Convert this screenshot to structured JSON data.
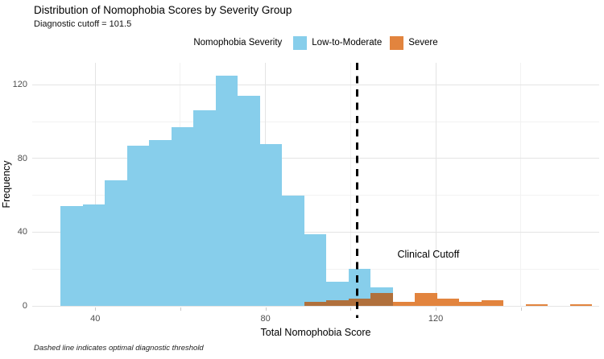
{
  "header": {
    "title": "Distribution of Nomophobia Scores by Severity Group",
    "subtitle": "Diagnostic cutoff = 101.5"
  },
  "legend": {
    "title": "Nomophobia Severity",
    "items": [
      {
        "label": "Low-to-Moderate",
        "color": "#87CEEB"
      },
      {
        "label": "Severe",
        "color": "#E2843E"
      }
    ]
  },
  "chart_data": {
    "type": "histogram",
    "title": "Distribution of Nomophobia Scores by Severity Group",
    "subtitle": "Diagnostic cutoff = 101.5",
    "xlabel": "Total Nomophobia Score",
    "ylabel": "Frequency",
    "x_ticks": [
      40,
      80,
      120
    ],
    "x_minor_ticks": [
      60,
      100,
      140
    ],
    "y_ticks": [
      0,
      40,
      80,
      120
    ],
    "y_minor_ticks": [
      20,
      60,
      100
    ],
    "x_domain": [
      25.2,
      158.4
    ],
    "y_domain": [
      0,
      132
    ],
    "bin_start": 31.9,
    "bin_width": 5.2,
    "series": [
      {
        "name": "Low-to-Moderate",
        "color": "#87CEEB",
        "first_bin": 0,
        "counts": [
          54,
          55,
          68,
          87,
          90,
          97,
          106,
          125,
          114,
          88,
          60,
          39,
          13,
          20,
          10
        ]
      },
      {
        "name": "Severe",
        "color": "#E2843E",
        "first_bin": 11,
        "counts": [
          2,
          3,
          4,
          7,
          2,
          7,
          4,
          2,
          3,
          0,
          1,
          0,
          1
        ]
      }
    ],
    "overlap_color": "#B0703C",
    "grid": true,
    "legend_position": "top",
    "cutoff_line": {
      "x": 101.5,
      "style": "dashed",
      "color": "#000000",
      "label": "Clinical Cutoff",
      "label_x": 111,
      "label_y": 28
    },
    "caption": "Dashed line indicates optimal diagnostic threshold"
  }
}
